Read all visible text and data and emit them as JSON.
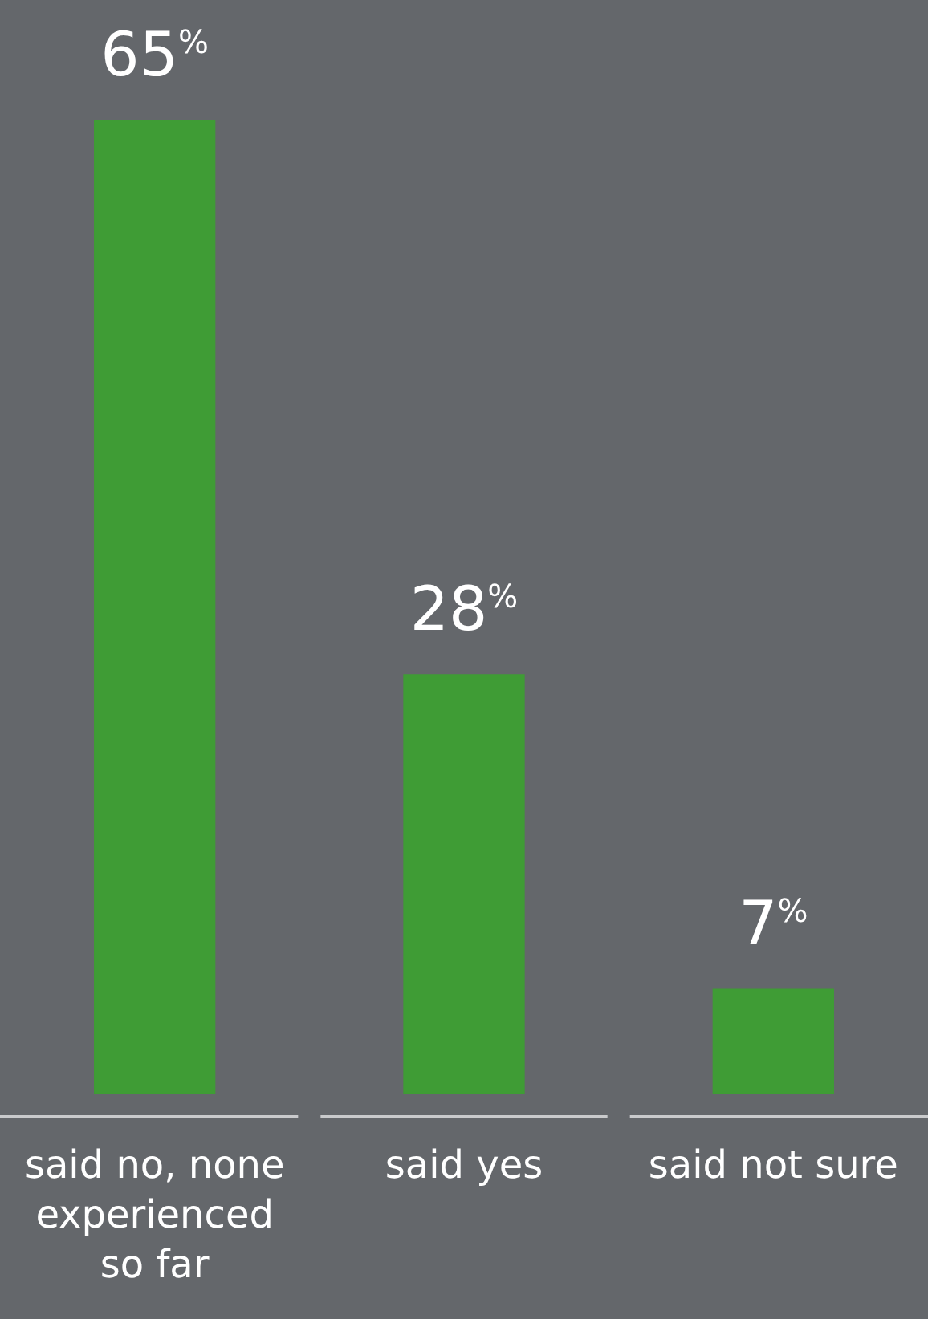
{
  "chart_data": {
    "type": "bar",
    "categories": [
      "said no, none experienced so far",
      "said yes",
      "said not sure"
    ],
    "values": [
      65,
      28,
      7
    ],
    "color": "#3f9c35",
    "value_labels": [
      "65$^{%}$",
      "28$^{%}$",
      "7$^{%}$"
    ],
    "grid": false,
    "legend": false
  }
}
